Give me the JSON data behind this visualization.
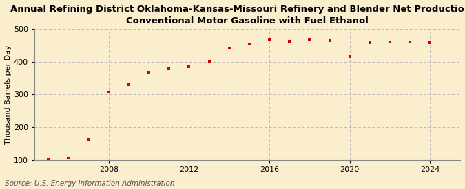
{
  "title_line1": "Annual Refining District Oklahoma-Kansas-Missouri Refinery and Blender Net Production of",
  "title_line2": "Conventional Motor Gasoline with Fuel Ethanol",
  "ylabel": "Thousand Barrels per Day",
  "source": "Source: U.S. Energy Information Administration",
  "years": [
    2005,
    2006,
    2007,
    2008,
    2009,
    2010,
    2011,
    2012,
    2013,
    2014,
    2015,
    2016,
    2017,
    2018,
    2019,
    2020,
    2021,
    2022,
    2023,
    2024
  ],
  "values": [
    102,
    105,
    163,
    308,
    330,
    365,
    378,
    384,
    400,
    442,
    454,
    468,
    463,
    467,
    465,
    417,
    458,
    460,
    460,
    458
  ],
  "marker_color": "#cc0000",
  "bg_color": "#faeecf",
  "grid_color": "#bbbbbb",
  "ylim": [
    100,
    500
  ],
  "yticks": [
    100,
    200,
    300,
    400,
    500
  ],
  "xlim": [
    2004.3,
    2025.5
  ],
  "xticks": [
    2008,
    2012,
    2016,
    2020,
    2024
  ],
  "title_fontsize": 9.5,
  "axis_fontsize": 8,
  "source_fontsize": 7.5
}
